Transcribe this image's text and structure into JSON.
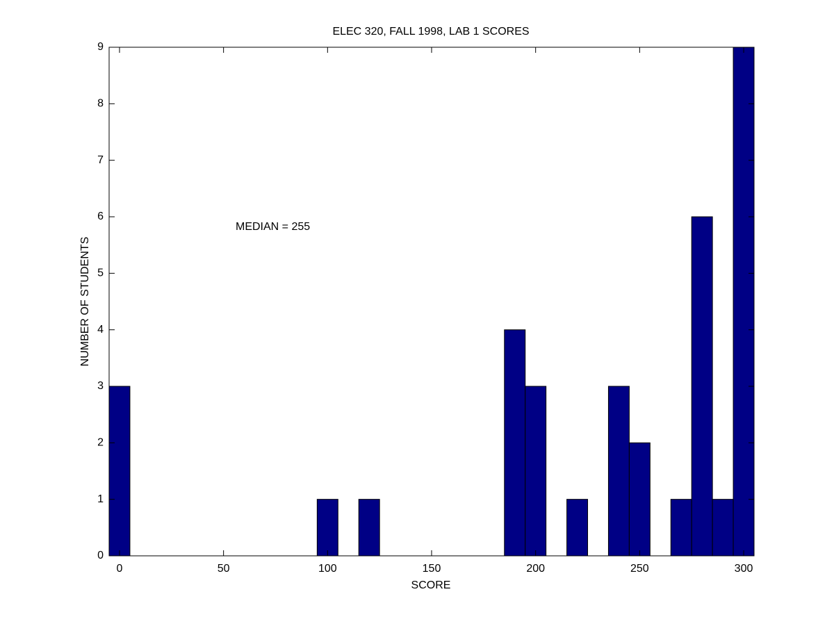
{
  "chart_data": {
    "type": "histogram",
    "title": "ELEC 320, FALL 1998, LAB 1 SCORES",
    "x_label": "SCORE",
    "y_label": "NUMBER OF STUDENTS",
    "annotation": "MEDIAN = 255",
    "bins": [
      -5,
      5,
      15,
      25,
      35,
      45,
      55,
      65,
      75,
      85,
      95,
      105,
      115,
      125,
      135,
      145,
      155,
      165,
      175,
      185,
      195,
      205,
      215,
      225,
      235,
      245,
      255,
      265,
      275,
      285,
      295,
      305
    ],
    "counts": [
      3,
      0,
      0,
      0,
      0,
      0,
      0,
      0,
      0,
      0,
      1,
      0,
      1,
      0,
      0,
      0,
      0,
      0,
      0,
      4,
      3,
      0,
      1,
      0,
      3,
      2,
      0,
      1,
      6,
      1,
      9
    ],
    "color": "#000085",
    "xlim": [
      -5,
      305
    ],
    "xticks": [
      0,
      50,
      100,
      150,
      200,
      250,
      300
    ],
    "ylim": [
      0,
      9
    ],
    "yticks": [
      0,
      1,
      2,
      3,
      4,
      5,
      6,
      7,
      8,
      9
    ],
    "grid": false
  }
}
